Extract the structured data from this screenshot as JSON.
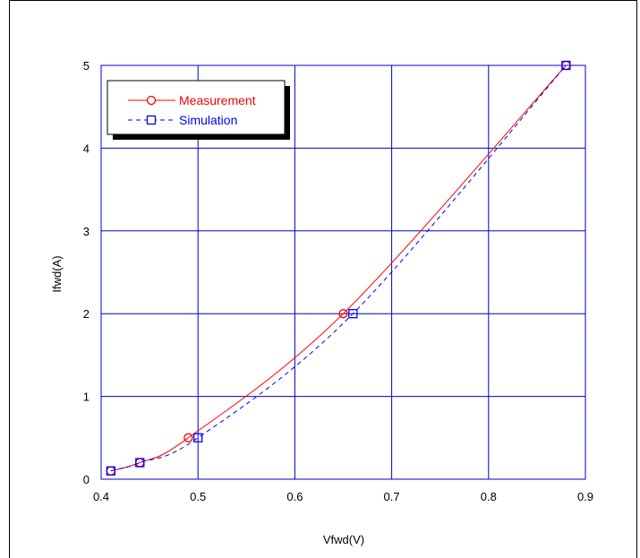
{
  "chart_data": {
    "type": "line",
    "title": "",
    "xlabel": "Vfwd(V)",
    "ylabel": "Ifwd(A)",
    "xlim": [
      0.4,
      0.9
    ],
    "ylim": [
      0,
      5
    ],
    "x_ticks": [
      "0.4",
      "0.5",
      "0.6",
      "0.7",
      "0.8",
      "0.9"
    ],
    "y_ticks": [
      "0",
      "1",
      "2",
      "3",
      "4",
      "5"
    ],
    "grid": true,
    "legend_position": "top-left",
    "series": [
      {
        "name": "Measurement",
        "color": "#ff0000",
        "line_style": "solid",
        "marker": "circle",
        "x": [
          0.41,
          0.44,
          0.49,
          0.65,
          0.88
        ],
        "y": [
          0.1,
          0.2,
          0.5,
          2.0,
          5.0
        ]
      },
      {
        "name": "Simulation",
        "color": "#0000ff",
        "line_style": "dashed",
        "marker": "square",
        "x": [
          0.41,
          0.44,
          0.5,
          0.66,
          0.88
        ],
        "y": [
          0.1,
          0.2,
          0.5,
          2.0,
          5.0
        ]
      }
    ],
    "grid_color": "#0000cc"
  }
}
